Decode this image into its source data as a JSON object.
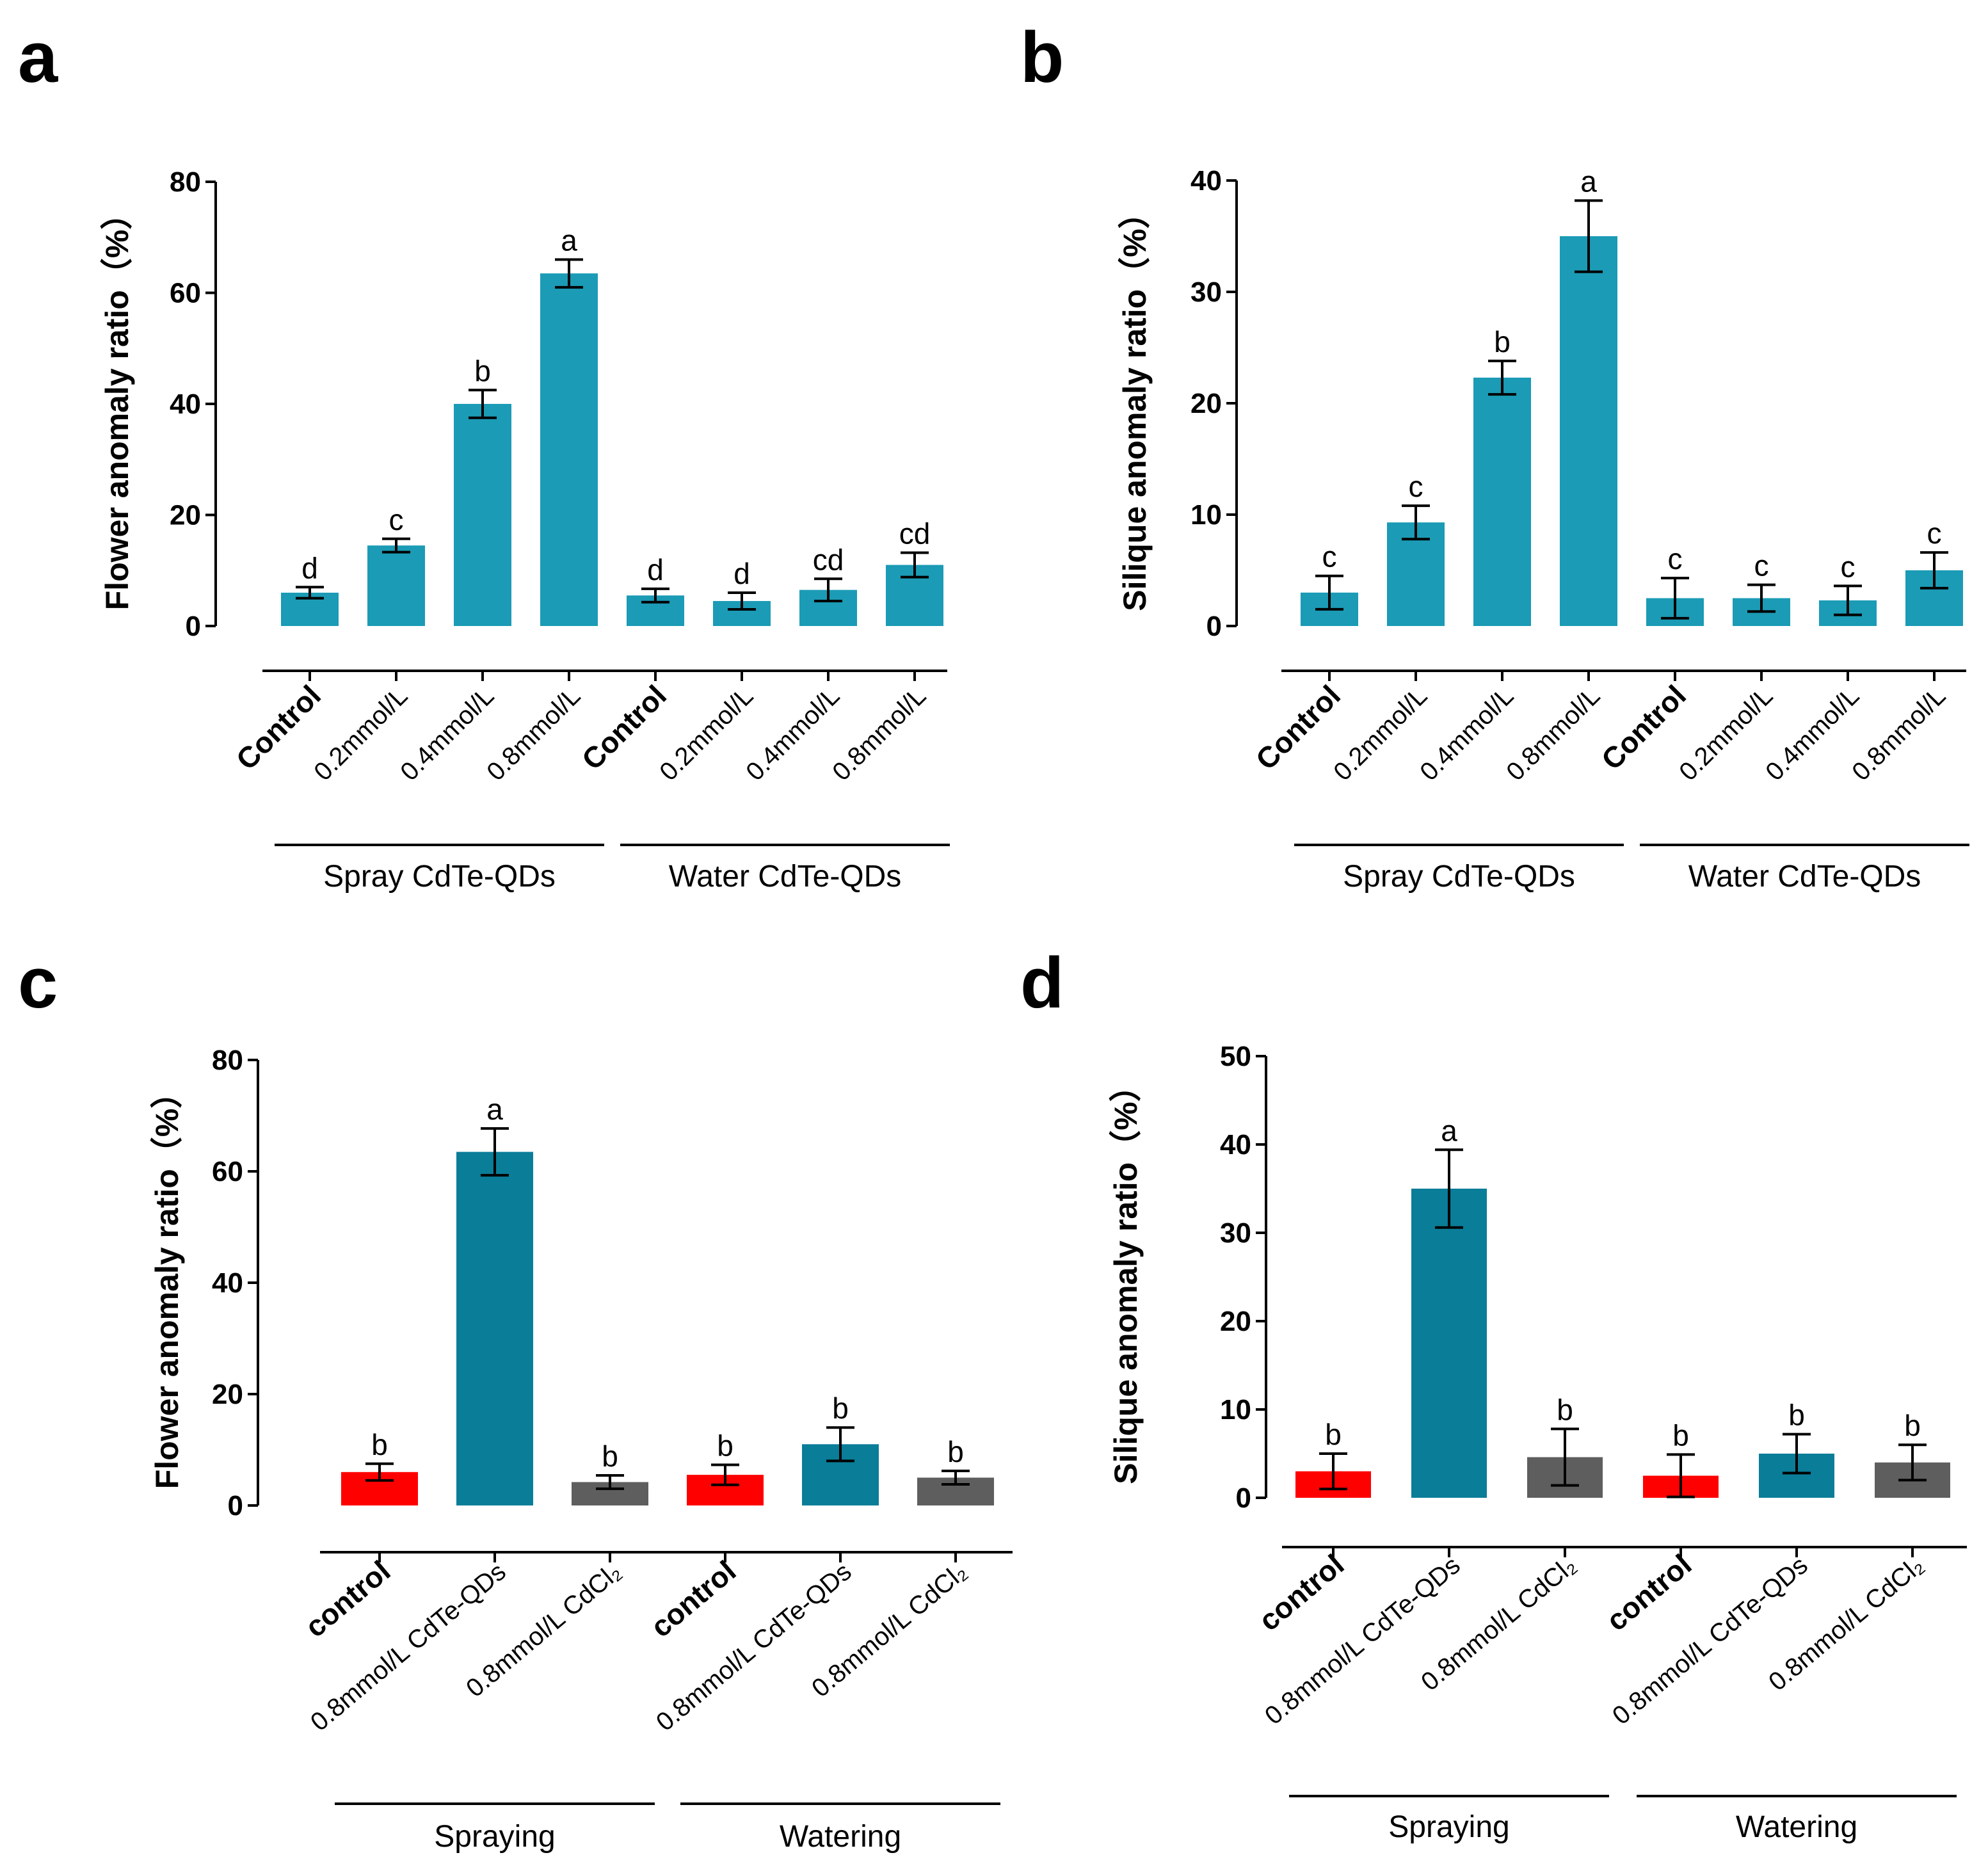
{
  "chart_data": [
    {
      "panel": "a",
      "type": "bar",
      "ylabel": "Flower anomaly ratio（%）",
      "ylim": [
        0,
        80
      ],
      "yticks": [
        0,
        20,
        40,
        60,
        80
      ],
      "categories": [
        "Control",
        "0.2mmol/L",
        "0.4mmol/L",
        "0.8mmol/L",
        "Control",
        "0.2mmol/L",
        "0.4mmol/L",
        "0.8mmol/L"
      ],
      "bold_categories": [
        true,
        false,
        false,
        false,
        true,
        false,
        false,
        false
      ],
      "values": [
        6,
        14.5,
        40,
        63.5,
        5.5,
        4.5,
        6.5,
        11
      ],
      "errors": [
        1,
        1.2,
        2.5,
        2.5,
        1.2,
        1.5,
        2,
        2.2
      ],
      "significance": [
        "d",
        "c",
        "b",
        "a",
        "d",
        "d",
        "cd",
        "cd"
      ],
      "colors": [
        "#1b9bb5",
        "#1b9bb5",
        "#1b9bb5",
        "#1b9bb5",
        "#1b9bb5",
        "#1b9bb5",
        "#1b9bb5",
        "#1b9bb5"
      ],
      "groups": [
        {
          "label": "Spray CdTe-QDs",
          "from": 0,
          "to": 3
        },
        {
          "label": "Water CdTe-QDs",
          "from": 4,
          "to": 7
        }
      ]
    },
    {
      "panel": "b",
      "type": "bar",
      "ylabel": "Silique anomaly ratio（%）",
      "ylim": [
        0,
        40
      ],
      "yticks": [
        0,
        10,
        20,
        30,
        40
      ],
      "categories": [
        "Control",
        "0.2mmol/L",
        "0.4mmol/L",
        "0.8mmol/L",
        "Control",
        "0.2mmol/L",
        "0.4mmol/L",
        "0.8mmol/L"
      ],
      "bold_categories": [
        true,
        false,
        false,
        false,
        true,
        false,
        false,
        false
      ],
      "values": [
        3,
        9.3,
        22.3,
        35,
        2.5,
        2.5,
        2.3,
        5
      ],
      "errors": [
        1.5,
        1.5,
        1.5,
        3.2,
        1.8,
        1.2,
        1.3,
        1.6
      ],
      "significance": [
        "c",
        "c",
        "b",
        "a",
        "c",
        "c",
        "c",
        "c"
      ],
      "colors": [
        "#1b9bb5",
        "#1b9bb5",
        "#1b9bb5",
        "#1b9bb5",
        "#1b9bb5",
        "#1b9bb5",
        "#1b9bb5",
        "#1b9bb5"
      ],
      "groups": [
        {
          "label": "Spray CdTe-QDs",
          "from": 0,
          "to": 3
        },
        {
          "label": "Water CdTe-QDs",
          "from": 4,
          "to": 7
        }
      ]
    },
    {
      "panel": "c",
      "type": "bar",
      "ylabel": "Flower anomaly ratio（%）",
      "ylim": [
        0,
        80
      ],
      "yticks": [
        0,
        20,
        40,
        60,
        80
      ],
      "categories": [
        "control",
        "0.8mmol/L CdTe-QDs",
        "0.8mmol/L CdCl₂",
        "control",
        "0.8mmol/L CdTe-QDs",
        "0.8mmol/L CdCl₂"
      ],
      "bold_categories": [
        true,
        false,
        false,
        true,
        false,
        false
      ],
      "values": [
        6,
        63.5,
        4.2,
        5.5,
        11,
        5
      ],
      "errors": [
        1.5,
        4.2,
        1.2,
        1.8,
        3,
        1.2
      ],
      "significance": [
        "b",
        "a",
        "b",
        "b",
        "b",
        "b"
      ],
      "colors": [
        "#ff0000",
        "#0a7d98",
        "#5e5e5e",
        "#ff0000",
        "#0a7d98",
        "#5e5e5e"
      ],
      "groups": [
        {
          "label": "Spraying",
          "from": 0,
          "to": 2
        },
        {
          "label": "Watering",
          "from": 3,
          "to": 5
        }
      ]
    },
    {
      "panel": "d",
      "type": "bar",
      "ylabel": "Silique anomaly ratio（%）",
      "ylim": [
        0,
        50
      ],
      "yticks": [
        0,
        10,
        20,
        30,
        40,
        50
      ],
      "categories": [
        "control",
        "0.8mmol/L CdTe-QDs",
        "0.8mmol/L CdCl₂",
        "control",
        "0.8mmol/L CdTe-QDs",
        "0.8mmol/L CdCl₂"
      ],
      "bold_categories": [
        true,
        false,
        false,
        true,
        false,
        false
      ],
      "values": [
        3,
        35,
        4.6,
        2.5,
        5,
        4
      ],
      "errors": [
        2,
        4.4,
        3.2,
        2.4,
        2.2,
        2
      ],
      "significance": [
        "b",
        "a",
        "b",
        "b",
        "b",
        "b"
      ],
      "colors": [
        "#ff0000",
        "#0a7d98",
        "#5e5e5e",
        "#ff0000",
        "#0a7d98",
        "#5e5e5e"
      ],
      "groups": [
        {
          "label": "Spraying",
          "from": 0,
          "to": 2
        },
        {
          "label": "Watering",
          "from": 3,
          "to": 5
        }
      ]
    }
  ]
}
